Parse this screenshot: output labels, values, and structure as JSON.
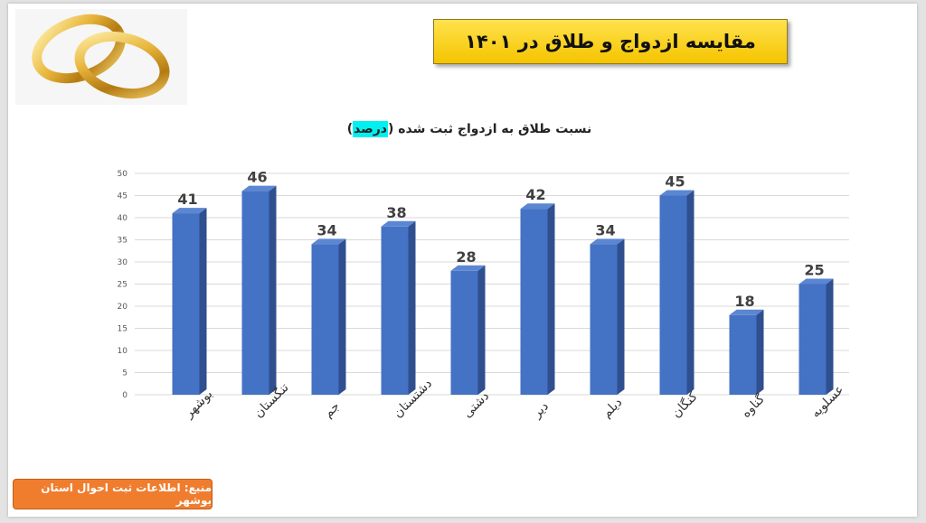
{
  "slide": {
    "title": "مقایسه ازدواج و طلاق در ۱۴۰۱",
    "source": "منبع: اطلاعات ثبت احوال استان بوشهر"
  },
  "chart_data": {
    "type": "bar",
    "title_main": "نسبت طلاق به ازدواج ثبت شده (",
    "title_highlight": "درصد",
    "title_end": ")",
    "categories": [
      "بوشهر",
      "تنگستان",
      "جم",
      "دشتستان",
      "دشتی",
      "دیر",
      "دیلم",
      "کنگان",
      "گناوه",
      "عسلویه"
    ],
    "values": [
      41,
      46,
      34,
      38,
      28,
      42,
      34,
      45,
      18,
      25
    ],
    "ylim": [
      0,
      50
    ],
    "yticks": [
      0,
      5,
      10,
      15,
      20,
      25,
      30,
      35,
      40,
      45,
      50
    ],
    "grid": true,
    "bar_color": "#4472c4",
    "bar_side_color": "#2f4f8f",
    "bar_top_color": "#5b86d2"
  }
}
